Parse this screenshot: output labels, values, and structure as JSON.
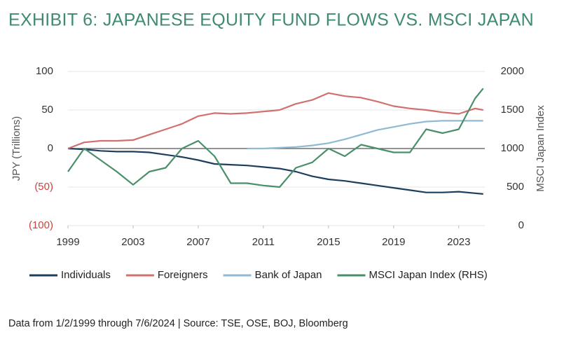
{
  "chart_data": {
    "type": "line",
    "title": "EXHIBIT 6: JAPANESE EQUITY FUND FLOWS VS. MSCI JAPAN",
    "y_label": "JPY (Trillions)",
    "y2_label": "MSCI Japan Index",
    "footnote": "Data from 1/2/1999 through 7/6/2024 | Source: TSE, OSE, BOJ, Bloomberg",
    "x": [
      1999,
      2000,
      2001,
      2002,
      2003,
      2004,
      2005,
      2006,
      2007,
      2008,
      2009,
      2010,
      2011,
      2012,
      2013,
      2014,
      2015,
      2016,
      2017,
      2018,
      2019,
      2020,
      2021,
      2022,
      2023,
      2024,
      2024.5
    ],
    "xlim": [
      1999,
      2024.6
    ],
    "xticks": [
      1999,
      2003,
      2007,
      2011,
      2015,
      2019,
      2023
    ],
    "ylim": [
      -100,
      100
    ],
    "yticks": [
      {
        "value": -100,
        "label": "(100)"
      },
      {
        "value": -50,
        "label": "(50)"
      },
      0,
      50,
      100
    ],
    "y2lim": [
      0,
      2000
    ],
    "y2ticks": [
      0,
      500,
      1000,
      1500,
      2000
    ],
    "negative_tick_color": "#d0403d",
    "grid": true,
    "series": [
      {
        "name": "Individuals",
        "color": "#1d3f5e",
        "values": [
          0,
          -1,
          -3,
          -4,
          -4,
          -5,
          -8,
          -11,
          -15,
          -20,
          -21,
          -22,
          -24,
          -26,
          -30,
          -36,
          -40,
          -42,
          -45,
          -48,
          -51,
          -54,
          -57,
          -57,
          -56,
          -58,
          -59
        ]
      },
      {
        "name": "Foreigners",
        "color": "#d0706f",
        "values": [
          0,
          8,
          10,
          10,
          11,
          18,
          25,
          32,
          42,
          46,
          45,
          46,
          48,
          50,
          58,
          63,
          72,
          68,
          66,
          61,
          55,
          52,
          50,
          47,
          45,
          52,
          50
        ]
      },
      {
        "name": "Bank of Japan",
        "color": "#8fbad3",
        "values": [
          null,
          null,
          null,
          null,
          null,
          null,
          null,
          null,
          null,
          null,
          null,
          0,
          0,
          1,
          2,
          4,
          7,
          12,
          18,
          24,
          28,
          32,
          35,
          36,
          36,
          36,
          36
        ]
      },
      {
        "name": "MSCI Japan Index (RHS)",
        "color": "#4a8f6a",
        "axis": "y2",
        "values": [
          700,
          1000,
          850,
          700,
          530,
          700,
          750,
          1000,
          1100,
          900,
          550,
          550,
          520,
          500,
          750,
          820,
          1000,
          900,
          1050,
          1000,
          950,
          950,
          1250,
          1200,
          1250,
          1650,
          1780
        ]
      }
    ]
  }
}
